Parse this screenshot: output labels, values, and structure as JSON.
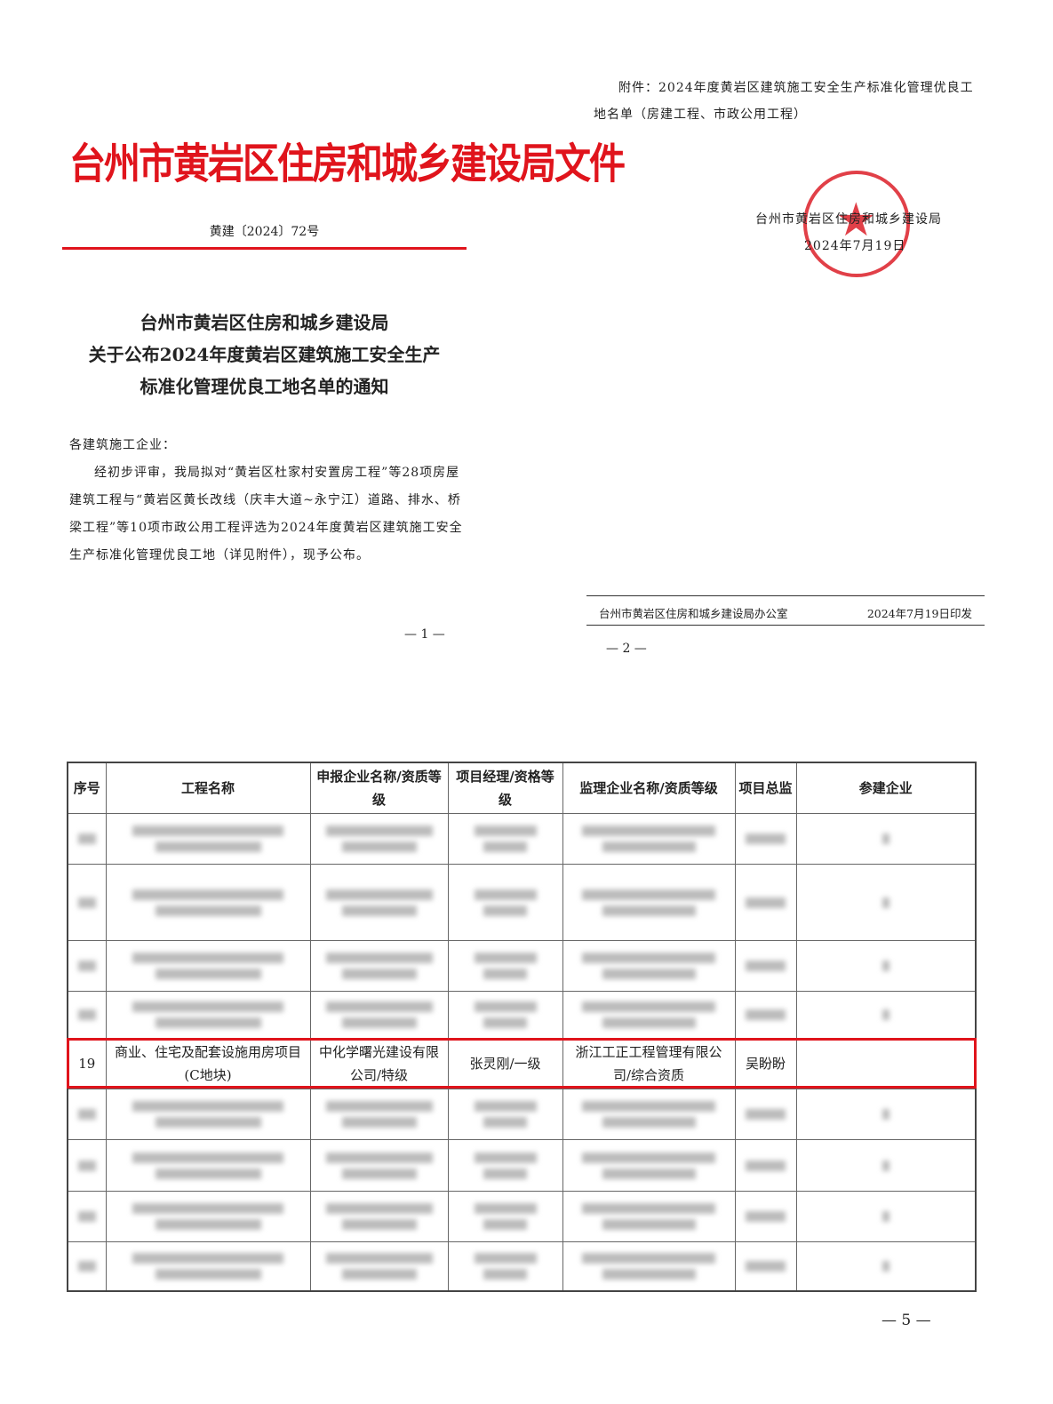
{
  "page1": {
    "header": "台州市黄岩区住房和城乡建设局文件",
    "doc_number": "黄建〔2024〕72号",
    "title_lines": [
      "台州市黄岩区住房和城乡建设局",
      "关于公布2024年度黄岩区建筑施工安全生产",
      "标准化管理优良工地名单的通知"
    ],
    "salutation": "各建筑施工企业：",
    "body": "经初步评审，我局拟对“黄岩区杜家村安置房工程”等28项房屋建筑工程与“黄岩区黄长改线（庆丰大道~永宁江）道路、排水、桥梁工程”等10项市政公用工程评选为2024年度黄岩区建筑施工安全生产标准化管理优良工地（详见附件），现予公布。",
    "page_number": "— 1 —"
  },
  "page2": {
    "attachment": "附件：2024年度黄岩区建筑施工安全生产标准化管理优良工地名单（房建工程、市政公用工程）",
    "signer": "台州市黄岩区住房和城乡建设局",
    "date": "2024年7月19日",
    "seal_text": "台州市黄岩区住房和城乡建设局",
    "seal_color": "#dc1e28",
    "footer_org": "台州市黄岩区住房和城乡建设局办公室",
    "footer_date": "2024年7月19日印发",
    "page_number": "— 2 —"
  },
  "table": {
    "headers": [
      "序号",
      "工程名称",
      "申报企业名称/资质等级",
      "项目经理/资格等级",
      "监理企业名称/资质等级",
      "项目总监",
      "参建企业"
    ],
    "highlighted_row": {
      "no": "19",
      "project": "商业、住宅及配套设施用房项目(C地块)",
      "contractor": "中化学曙光建设有限公司/特级",
      "manager": "张灵刚/一级",
      "supervisor": "浙江工正工程管理有限公司/综合资质",
      "director": "吴盼盼",
      "participant": ""
    },
    "highlight_color": "#e0141c",
    "page_number": "— 5 —"
  }
}
